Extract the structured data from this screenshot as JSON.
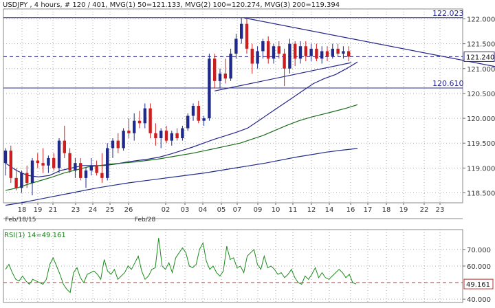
{
  "header": {
    "text": "USDJPY , 4 hours, # 120 / 401, MVG(1) 50=121.133, MVG(2) 100=120.274, MVG(3) 200=119.394"
  },
  "rsi_header": {
    "text": "RSI(1) 14=49.161"
  },
  "colors": {
    "up_candle": "#1f2a8a",
    "down_candle": "#cc1e1e",
    "ma50": "#24248a",
    "ma100": "#1a6b1a",
    "ma200": "#1f2a8a",
    "trendline": "#24248a",
    "hline": "#24248a",
    "rsi": "#1a8a1a",
    "rsi_level": "#b03030",
    "grid": "#a8a8a8",
    "axis_text": "#333333"
  },
  "chart_data": [
    {
      "type": "candlestick",
      "symbol": "USDJPY",
      "timeframe": "4 hours",
      "ylim": [
        118.3,
        122.2
      ],
      "y_ticks": [
        118.5,
        119.0,
        119.5,
        120.0,
        120.5,
        121.0,
        121.5,
        122.0
      ],
      "y_tick_labels": [
        "118.500",
        "119.000",
        "119.500",
        "120.000",
        "120.500",
        "121.000",
        "121.500",
        "122.000"
      ],
      "x_tick_labels": [
        "18",
        "19",
        "21",
        "23",
        "24",
        "25",
        "26",
        "02",
        "03",
        "04",
        "05",
        "07",
        "09",
        "10",
        "11",
        "12",
        "14",
        "16",
        "17",
        "18",
        "19",
        "22",
        "23"
      ],
      "x_secondary_labels": [
        "Feb/18/15",
        "Feb/28"
      ],
      "grid": true,
      "candles": [
        [
          119.1,
          119.4,
          118.85,
          119.35
        ],
        [
          119.35,
          119.45,
          118.7,
          118.8
        ],
        [
          118.8,
          119.0,
          118.55,
          118.6
        ],
        [
          118.6,
          118.95,
          118.5,
          118.9
        ],
        [
          118.9,
          119.05,
          118.6,
          118.7
        ],
        [
          118.7,
          119.2,
          118.45,
          119.15
        ],
        [
          119.15,
          119.3,
          119.0,
          119.1
        ],
        [
          119.1,
          119.4,
          118.9,
          119.05
        ],
        [
          119.05,
          119.25,
          118.9,
          119.2
        ],
        [
          119.2,
          119.3,
          118.95,
          119.0
        ],
        [
          119.0,
          119.6,
          118.9,
          119.55
        ],
        [
          119.55,
          119.85,
          119.2,
          119.3
        ],
        [
          119.3,
          119.4,
          118.9,
          118.95
        ],
        [
          118.95,
          119.2,
          118.8,
          119.1
        ],
        [
          119.1,
          119.2,
          118.75,
          118.8
        ],
        [
          118.8,
          119.0,
          118.6,
          118.95
        ],
        [
          118.95,
          119.2,
          118.85,
          119.05
        ],
        [
          119.05,
          119.15,
          118.85,
          118.9
        ],
        [
          118.9,
          119.3,
          118.7,
          118.8
        ],
        [
          118.8,
          119.5,
          118.75,
          119.4
        ],
        [
          119.4,
          119.6,
          119.2,
          119.55
        ],
        [
          119.55,
          119.7,
          119.3,
          119.4
        ],
        [
          119.4,
          119.8,
          119.35,
          119.75
        ],
        [
          119.75,
          120.0,
          119.6,
          119.7
        ],
        [
          119.7,
          120.1,
          119.55,
          119.95
        ],
        [
          119.95,
          120.15,
          119.8,
          119.9
        ],
        [
          119.9,
          120.3,
          119.8,
          120.2
        ],
        [
          120.2,
          120.3,
          119.6,
          119.7
        ],
        [
          119.7,
          119.9,
          119.45,
          119.6
        ],
        [
          119.6,
          119.8,
          119.4,
          119.75
        ],
        [
          119.75,
          119.85,
          119.5,
          119.55
        ],
        [
          119.55,
          119.75,
          119.45,
          119.7
        ],
        [
          119.7,
          119.8,
          119.55,
          119.6
        ],
        [
          119.6,
          119.85,
          119.55,
          119.8
        ],
        [
          119.8,
          120.1,
          119.75,
          120.05
        ],
        [
          120.05,
          120.3,
          119.95,
          120.25
        ],
        [
          120.25,
          120.35,
          119.9,
          119.95
        ],
        [
          119.95,
          120.05,
          119.85,
          120.0
        ],
        [
          120.0,
          121.3,
          119.95,
          121.2
        ],
        [
          121.2,
          121.3,
          120.6,
          120.75
        ],
        [
          120.75,
          121.0,
          120.6,
          120.9
        ],
        [
          120.9,
          121.2,
          120.7,
          120.8
        ],
        [
          120.8,
          121.4,
          120.75,
          121.3
        ],
        [
          121.3,
          121.7,
          121.2,
          121.6
        ],
        [
          121.6,
          122.02,
          121.5,
          121.9
        ],
        [
          121.9,
          122.0,
          121.3,
          121.4
        ],
        [
          121.4,
          121.5,
          120.9,
          121.1
        ],
        [
          121.1,
          121.45,
          121.0,
          121.35
        ],
        [
          121.35,
          121.6,
          121.2,
          121.55
        ],
        [
          121.55,
          121.65,
          121.1,
          121.2
        ],
        [
          121.2,
          121.5,
          121.1,
          121.45
        ],
        [
          121.45,
          121.55,
          121.2,
          121.3
        ],
        [
          121.3,
          121.4,
          120.65,
          121.0
        ],
        [
          121.0,
          121.6,
          120.9,
          121.5
        ],
        [
          121.5,
          121.55,
          121.05,
          121.2
        ],
        [
          121.2,
          121.55,
          121.1,
          121.45
        ],
        [
          121.45,
          121.55,
          121.15,
          121.25
        ],
        [
          121.25,
          121.5,
          121.15,
          121.4
        ],
        [
          121.4,
          121.5,
          121.15,
          121.2
        ],
        [
          121.2,
          121.45,
          121.1,
          121.35
        ],
        [
          121.35,
          121.45,
          121.15,
          121.25
        ],
        [
          121.25,
          121.5,
          121.2,
          121.4
        ],
        [
          121.4,
          121.5,
          121.25,
          121.3
        ],
        [
          121.3,
          121.45,
          121.2,
          121.35
        ],
        [
          121.35,
          121.45,
          121.15,
          121.24
        ]
      ],
      "series": [
        {
          "name": "MVG(1) 50",
          "last": 121.133,
          "values": [
            119.1,
            118.95,
            118.85,
            118.82,
            118.85,
            118.95,
            119.0,
            119.05,
            119.05,
            119.05,
            119.08,
            119.12,
            119.15,
            119.18,
            119.22,
            119.28,
            119.35,
            119.42,
            119.5,
            119.58,
            119.65,
            119.72,
            119.8,
            119.95,
            120.1,
            120.25,
            120.4,
            120.55,
            120.7,
            120.8,
            120.88,
            121.0,
            121.133
          ]
        },
        {
          "name": "MVG(2) 100",
          "last": 120.274,
          "values": [
            118.55,
            118.6,
            118.68,
            118.75,
            118.82,
            118.9,
            118.96,
            119.02,
            119.05,
            119.08,
            119.1,
            119.12,
            119.15,
            119.18,
            119.22,
            119.26,
            119.3,
            119.35,
            119.4,
            119.45,
            119.5,
            119.58,
            119.66,
            119.76,
            119.86,
            119.95,
            120.02,
            120.08,
            120.14,
            120.2,
            120.274
          ]
        },
        {
          "name": "MVG(3) 200",
          "last": 119.394,
          "values": [
            118.25,
            118.3,
            118.36,
            118.42,
            118.48,
            118.54,
            118.6,
            118.65,
            118.7,
            118.74,
            118.78,
            118.82,
            118.86,
            118.9,
            118.95,
            119.0,
            119.05,
            119.1,
            119.16,
            119.22,
            119.27,
            119.32,
            119.36,
            119.394
          ]
        }
      ],
      "annotations": [
        {
          "label": "122.023",
          "value": 122.023
        },
        {
          "label": "120.610",
          "value": 120.61
        }
      ],
      "last_price": 121.24,
      "last_price_label": "121.240",
      "trendlines": [
        {
          "from": [
            44.5,
            122.02
          ],
          "to": [
            99,
            120.88
          ]
        },
        {
          "from": [
            39,
            120.55
          ],
          "to": [
            64.5,
            121.12
          ]
        }
      ]
    },
    {
      "type": "line",
      "title": "RSI(1) 14=49.161",
      "ylim": [
        38,
        82
      ],
      "y_ticks": [
        40,
        50,
        60,
        70
      ],
      "y_tick_labels": [
        "40.000",
        "",
        "60.000",
        "70.000"
      ],
      "level": 50,
      "last_value": 49.161,
      "last_label": "49.161",
      "values": [
        58,
        61,
        56,
        52,
        51,
        54,
        51,
        49,
        52,
        51,
        50,
        49,
        52,
        61,
        65,
        60,
        55,
        49,
        46,
        44,
        56,
        59,
        53,
        50,
        55,
        56,
        57,
        55,
        52,
        64,
        57,
        55,
        58,
        52,
        54,
        56,
        60,
        58,
        62,
        66,
        57,
        52,
        54,
        58,
        59,
        77,
        60,
        58,
        62,
        56,
        65,
        68,
        71,
        68,
        60,
        59,
        61,
        70,
        74,
        63,
        58,
        60,
        56,
        54,
        57,
        72,
        64,
        65,
        59,
        60,
        56,
        66,
        68,
        70,
        61,
        58,
        66,
        59,
        60,
        58,
        55,
        56,
        53,
        55,
        58,
        53,
        50,
        49,
        54,
        52,
        55,
        59,
        53,
        56,
        53,
        52,
        54,
        56,
        58,
        56,
        53,
        55,
        50,
        49.161
      ]
    }
  ]
}
